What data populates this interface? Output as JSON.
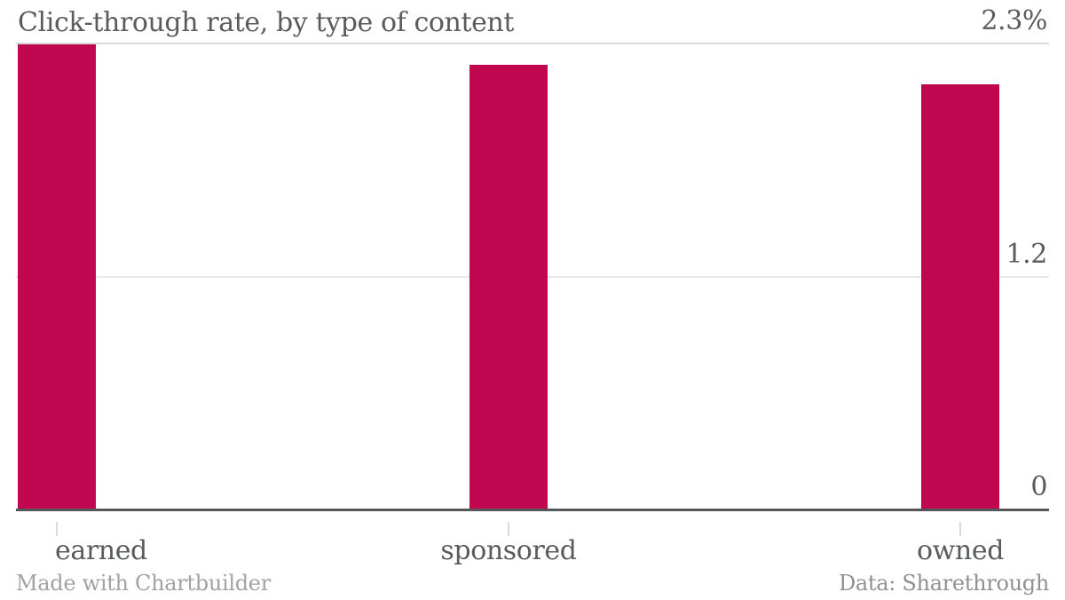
{
  "header": {
    "title": "Click-through rate, by type of content"
  },
  "footer": {
    "left": "Made with Chartbuilder",
    "right": "Data: Sharethrough"
  },
  "chart_data": {
    "type": "bar",
    "title": "Click-through rate, by type of content",
    "categories": [
      "earned",
      "sponsored",
      "owned"
    ],
    "values": [
      2.3,
      2.2,
      2.1
    ],
    "value_unit": "percent",
    "xlabel": "",
    "ylabel": "",
    "ylim": [
      0,
      2.3
    ],
    "yticks": [
      {
        "value": 0,
        "label": "0"
      },
      {
        "value": 1.15,
        "label": "1.2"
      },
      {
        "value": 2.3,
        "label": "2.3%"
      }
    ],
    "grid": "horizontal-only",
    "legend": "none",
    "bar_color": "#c1074f"
  },
  "colors": {
    "background": "#ffffff",
    "bar": "#c1074f",
    "text": "#595b5e",
    "footer_left_text": "#a0a2a4",
    "footer_right_text": "#8f9194",
    "gridline_top": "#d8d8d8",
    "gridline_mid": "#e9e9e9",
    "axis_line": "#55585b",
    "x_tick": "#dadada"
  }
}
